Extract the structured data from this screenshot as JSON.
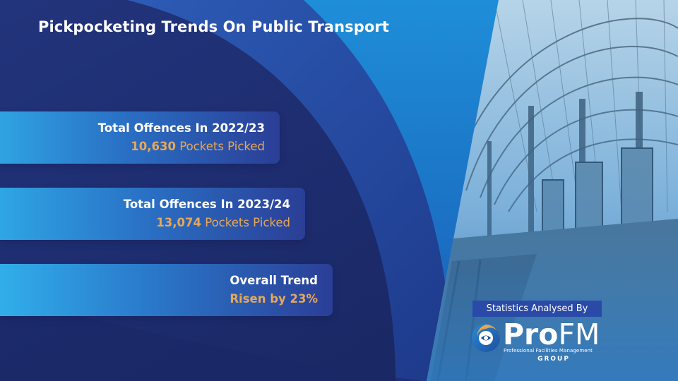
{
  "title": "Pickpocketing Trends On Public Transport",
  "stats": [
    {
      "heading": "Total Offences In 2022/23",
      "number": "10,630",
      "suffix": "Pockets Picked"
    },
    {
      "heading": "Total Offences In 2023/24",
      "number": "13,074",
      "suffix": "Pockets Picked"
    },
    {
      "heading": "Overall Trend",
      "value": "Risen by 23%"
    }
  ],
  "branding": {
    "badge_text": "Statistics Analysed By",
    "logo_pro": "Pro",
    "logo_fm": "FM",
    "logo_tagline": "Professional Facilities Management",
    "logo_group": "GROUP",
    "logo_icon": "profm-swirl-icon"
  },
  "colors": {
    "background": "#1b2d6e",
    "accent": "#e6a85a",
    "panel": "#2a6fc4",
    "badge": "#2a4aa8"
  },
  "background_photo": "train-station-platform-photo"
}
